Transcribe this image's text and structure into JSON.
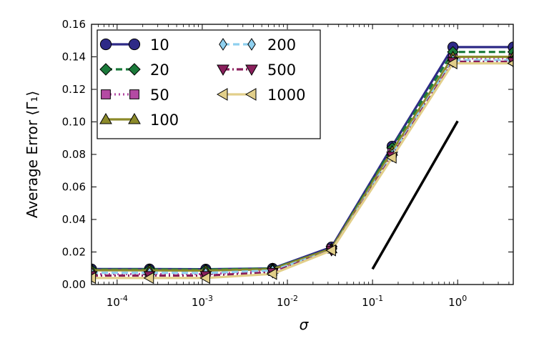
{
  "chart_data": {
    "type": "line",
    "xlabel": "σ",
    "ylabel": "Average Error ⟨Γ₁⟩",
    "xscale": "log",
    "xlim": [
      5e-05,
      4.5
    ],
    "ylim": [
      0,
      0.16
    ],
    "x_ticks": [
      {
        "value": 0.0001,
        "base": "10",
        "exp": "-4"
      },
      {
        "value": 0.001,
        "base": "10",
        "exp": "-3"
      },
      {
        "value": 0.01,
        "base": "10",
        "exp": "-2"
      },
      {
        "value": 0.1,
        "base": "10",
        "exp": "-1"
      },
      {
        "value": 1,
        "base": "10",
        "exp": "0"
      }
    ],
    "y_ticks": [
      {
        "value": 0,
        "label": "0.00"
      },
      {
        "value": 0.02,
        "label": "0.02"
      },
      {
        "value": 0.04,
        "label": "0.04"
      },
      {
        "value": 0.06,
        "label": "0.06"
      },
      {
        "value": 0.08,
        "label": "0.08"
      },
      {
        "value": 0.1,
        "label": "0.10"
      },
      {
        "value": 0.12,
        "label": "0.12"
      },
      {
        "value": 0.14,
        "label": "0.14"
      },
      {
        "value": 0.16,
        "label": "0.16"
      }
    ],
    "grid": false,
    "legend_position": "top-left",
    "x": [
      5e-05,
      0.00024,
      0.0011,
      0.0067,
      0.033,
      0.17,
      0.88,
      4.5
    ],
    "series": [
      {
        "name": "10",
        "color": "#2e2a87",
        "marker": "circle",
        "dash": "solid",
        "values": [
          0.0095,
          0.0095,
          0.0094,
          0.0099,
          0.023,
          0.085,
          0.146,
          0.146
        ]
      },
      {
        "name": "20",
        "color": "#1b7a3a",
        "marker": "diamond",
        "dash": "dashed",
        "values": [
          0.0092,
          0.0093,
          0.0092,
          0.0098,
          0.022,
          0.084,
          0.143,
          0.143
        ]
      },
      {
        "name": "50",
        "color": "#b44aa3",
        "marker": "square",
        "dash": "dotted",
        "values": [
          0.0063,
          0.0064,
          0.0064,
          0.0082,
          0.022,
          0.081,
          0.139,
          0.139
        ]
      },
      {
        "name": "100",
        "color": "#8c8a2a",
        "marker": "triangle-up",
        "dash": "solid",
        "values": [
          0.0088,
          0.0087,
          0.0086,
          0.0094,
          0.022,
          0.082,
          0.14,
          0.14
        ]
      },
      {
        "name": "200",
        "color": "#8fd0ef",
        "marker": "thin-diamond",
        "dash": "dashed",
        "values": [
          0.0072,
          0.0072,
          0.0071,
          0.0086,
          0.021,
          0.08,
          0.138,
          0.138
        ]
      },
      {
        "name": "500",
        "color": "#8a1f5c",
        "marker": "triangle-down",
        "dash": "dashdot",
        "values": [
          0.0055,
          0.0055,
          0.0055,
          0.0075,
          0.021,
          0.079,
          0.137,
          0.137
        ]
      },
      {
        "name": "1000",
        "color": "#e2cf8a",
        "marker": "triangle-left",
        "dash": "solid",
        "values": [
          0.004,
          0.004,
          0.004,
          0.0065,
          0.021,
          0.078,
          0.136,
          0.136
        ]
      }
    ],
    "reference_line": {
      "color": "#000000",
      "points": [
        [
          0.1,
          0.0095
        ],
        [
          1.0,
          0.1005
        ]
      ]
    }
  }
}
